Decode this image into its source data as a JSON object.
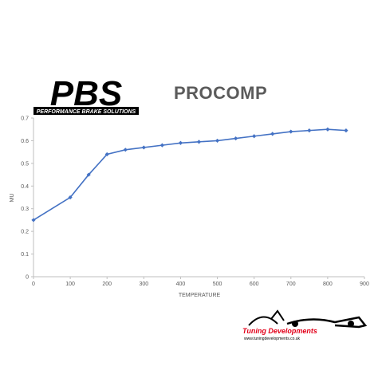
{
  "brand": {
    "logo_text": "PBS",
    "logo_tagline": "PERFORMANCE BRAKE SOLUTIONS",
    "dealer_name": "Tuning Developments",
    "dealer_url": "www.tuningdevelopments.co.uk"
  },
  "colors": {
    "line": "#4472c4",
    "axis": "#bfbfbf",
    "text": "#595959",
    "title": "#5b5b5b",
    "dealer_red": "#e2001a"
  },
  "chart_data": {
    "type": "line",
    "title": "PROCOMP",
    "xlabel": "TEMPERATURE",
    "ylabel": "MU",
    "x": [
      0,
      100,
      150,
      200,
      250,
      300,
      350,
      400,
      450,
      500,
      550,
      600,
      650,
      700,
      750,
      800,
      850
    ],
    "series": [
      {
        "values": [
          0.25,
          0.35,
          0.45,
          0.54,
          0.56,
          0.57,
          0.58,
          0.59,
          0.595,
          0.6,
          0.61,
          0.62,
          0.63,
          0.64,
          0.645,
          0.65,
          0.645
        ]
      }
    ],
    "xlim": [
      0,
      900
    ],
    "ylim": [
      0,
      0.7
    ],
    "xticks": [
      0,
      100,
      200,
      300,
      400,
      500,
      600,
      700,
      800,
      900
    ],
    "yticks": [
      0,
      0.1,
      0.2,
      0.3,
      0.4,
      0.5,
      0.6,
      0.7
    ],
    "xtick_labels": [
      "0",
      "100",
      "200",
      "300",
      "400",
      "500",
      "600",
      "700",
      "800",
      "900"
    ],
    "ytick_labels": [
      "0",
      "0.1",
      "0.2",
      "0.3",
      "0.4",
      "0.5",
      "0.6",
      "0.7"
    ],
    "grid": false,
    "marker": "diamond"
  }
}
